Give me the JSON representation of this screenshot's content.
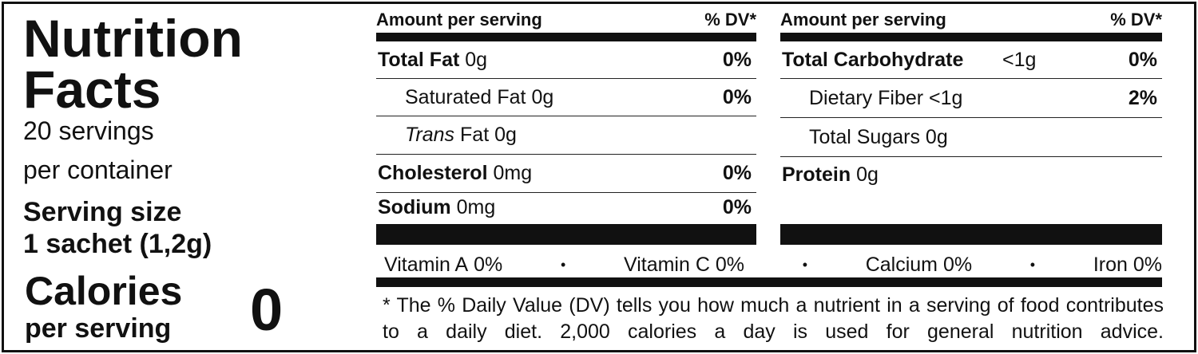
{
  "title": {
    "line1": "Nutrition",
    "line2": "Facts"
  },
  "servings": {
    "line1": "20 servings",
    "line2": "per container"
  },
  "serving_size": {
    "label": "Serving size",
    "value": "1 sachet (1,2g)"
  },
  "calories": {
    "label": "Calories",
    "sublabel": "per serving",
    "value": "0"
  },
  "left_table": {
    "header": {
      "amount": "Amount per serving",
      "dv": "% DV*"
    },
    "rows": [
      {
        "name": "Total Fat",
        "amount": "0g",
        "dv": "0%",
        "bold": true,
        "indent": false
      },
      {
        "name": "Saturated Fat",
        "amount": "0g",
        "dv": "0%",
        "bold": false,
        "indent": true
      },
      {
        "name_italic": "Trans",
        "name": "Fat",
        "amount": "0g",
        "bold": false,
        "indent": true
      },
      {
        "name": "Cholesterol",
        "amount": "0mg",
        "dv": "0%",
        "bold": true,
        "indent": false
      },
      {
        "name": "Sodium",
        "amount": "0mg",
        "dv": "0%",
        "bold": true,
        "indent": false
      }
    ]
  },
  "right_table": {
    "header": {
      "amount": "Amount per serving",
      "dv": "% DV*"
    },
    "rows": [
      {
        "name": "Total Carbohydrate",
        "amount": "<1g",
        "dv": "0%",
        "bold": true,
        "indent": false
      },
      {
        "name": "Dietary Fiber",
        "amount": "<1g",
        "dv": "2%",
        "bold": false,
        "indent": true
      },
      {
        "name": "Total Sugars",
        "amount": "0g",
        "bold": false,
        "indent": true
      },
      {
        "name": "Protein",
        "amount": "0g",
        "bold": true,
        "indent": false
      }
    ]
  },
  "vitamins": [
    {
      "name": "Vitamin A",
      "value": "0%"
    },
    {
      "name": "Vitamin C",
      "value": "0%"
    },
    {
      "name": "Calcium",
      "value": "0%"
    },
    {
      "name": "Iron",
      "value": "0%"
    }
  ],
  "footnote": "* The % Daily Value (DV) tells you how much a nutrient in a serving of food contributes to a daily diet. 2,000 calories a day is used for general nutrition advice."
}
